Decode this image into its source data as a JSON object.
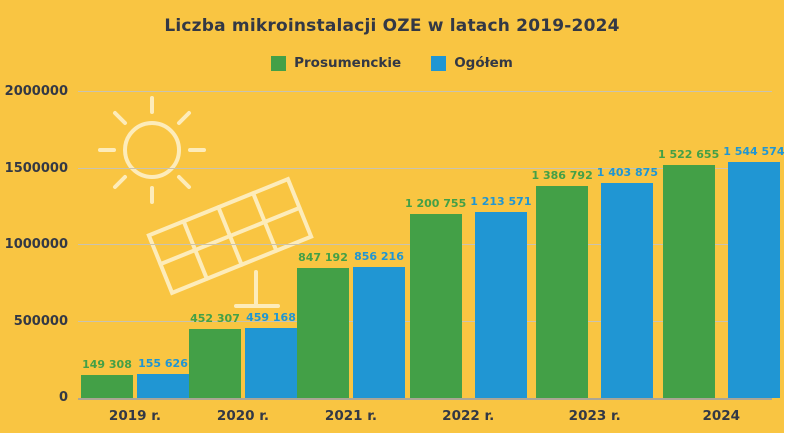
{
  "title": "Liczba mikroinstalacji OZE w latach 2019-2024",
  "legend": [
    {
      "label": "Prosumenckie",
      "color": "#43A047"
    },
    {
      "label": "Ogółem",
      "color": "#2096D3"
    }
  ],
  "colors": {
    "background": "#F9C542",
    "text": "#333845",
    "gridline": "#C9C3B0",
    "axis": "#ABA695",
    "decoration": "#FFF6D8"
  },
  "decorations": {
    "sun": "sun-icon",
    "solar_panel": "solar-panel-icon"
  },
  "chart_data": {
    "type": "bar",
    "title": "Liczba mikroinstalacji OZE w latach 2019-2024",
    "xlabel": "",
    "ylabel": "",
    "categories": [
      "2019 r.",
      "2020 r.",
      "2021 r.",
      "2022 r.",
      "2023 r.",
      "2024"
    ],
    "series": [
      {
        "name": "Prosumenckie",
        "color": "#43A047",
        "values": [
          149308,
          452307,
          847192,
          1200755,
          1386792,
          1522655
        ],
        "labels": [
          "149 308",
          "452 307",
          "847 192",
          "1 200 755",
          "1 386 792",
          "1 522 655"
        ]
      },
      {
        "name": "Ogółem",
        "color": "#2096D3",
        "values": [
          155626,
          459168,
          856216,
          1213571,
          1403875,
          1544574
        ],
        "labels": [
          "155 626",
          "459 168",
          "856 216",
          "1 213 571",
          "1 403 875",
          "1 544 574"
        ]
      }
    ],
    "ylim": [
      0,
      2000000
    ],
    "yticks": [
      0,
      500000,
      1000000,
      1500000,
      2000000
    ],
    "ytick_labels": [
      "0",
      "500000",
      "1000000",
      "1500000",
      "2000000"
    ],
    "grid": true,
    "legend_position": "top"
  }
}
